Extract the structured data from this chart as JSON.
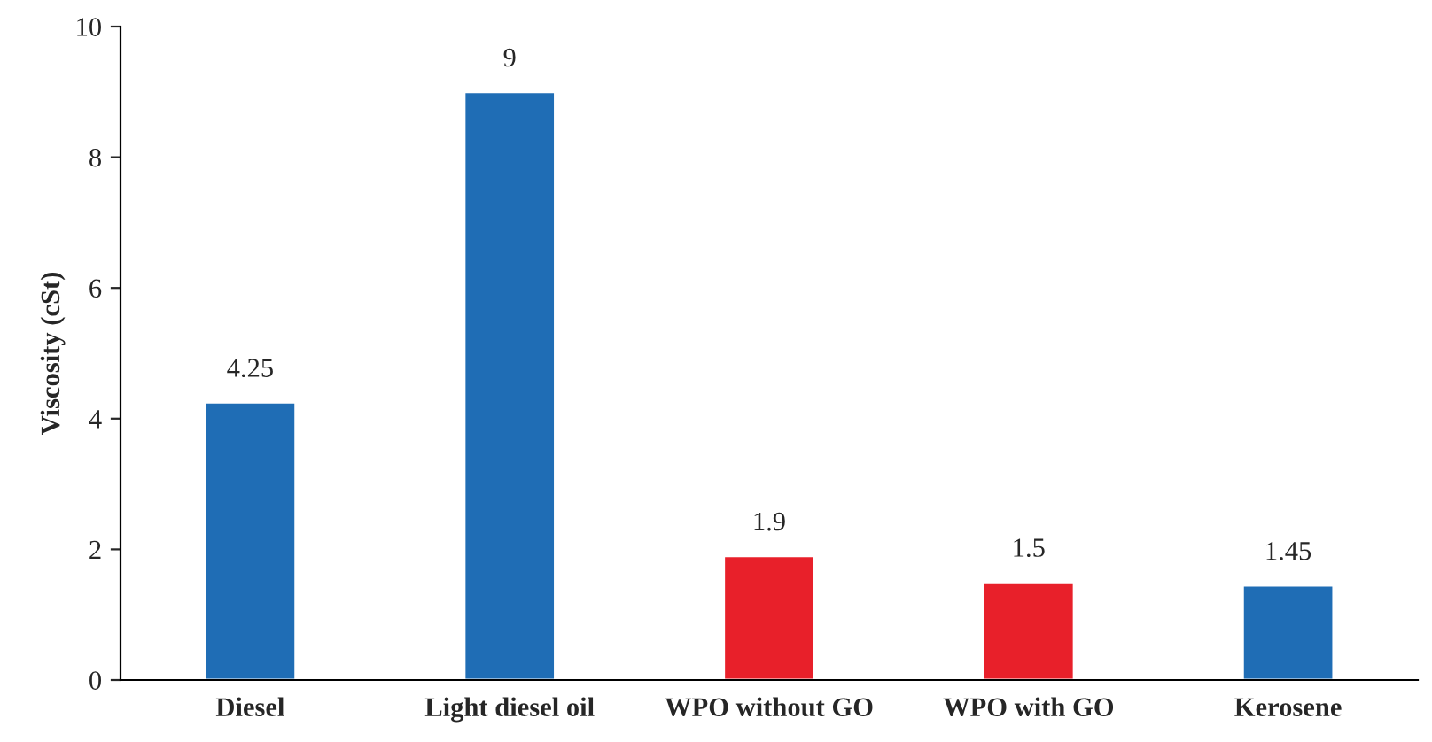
{
  "chart_data": {
    "type": "bar",
    "ylabel": "Viscosity (cSt)",
    "categories": [
      "Diesel",
      "Light diesel oil",
      "WPO without GO",
      "WPO with GO",
      "Kerosene"
    ],
    "values": [
      4.25,
      9,
      1.9,
      1.5,
      1.45
    ],
    "colors": [
      "#1f6db5",
      "#1f6db5",
      "#e8202a",
      "#e8202a",
      "#1f6db5"
    ],
    "ylim": [
      0,
      10
    ],
    "yticks": [
      0,
      2,
      4,
      6,
      8,
      10
    ],
    "data_labels": true,
    "grid": false,
    "legend": false
  }
}
